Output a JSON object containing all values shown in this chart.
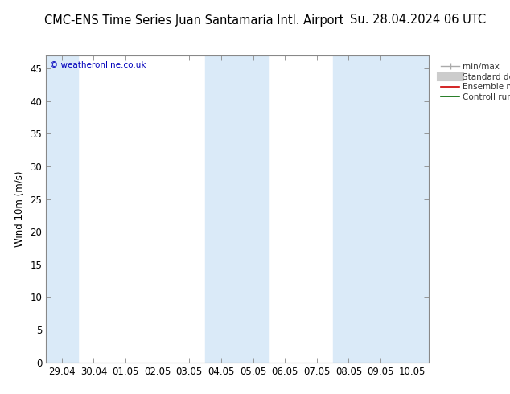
{
  "title_left": "CMC-ENS Time Series Juan Santamaría Intl. Airport",
  "title_right": "Su. 28.04.2024 06 UTC",
  "ylabel": "Wind 10m (m/s)",
  "watermark": "© weatheronline.co.uk",
  "ylim": [
    0,
    47
  ],
  "yticks": [
    0,
    5,
    10,
    15,
    20,
    25,
    30,
    35,
    40,
    45
  ],
  "xtick_labels": [
    "29.04",
    "30.04",
    "01.05",
    "02.05",
    "03.05",
    "04.05",
    "05.05",
    "06.05",
    "07.05",
    "08.05",
    "09.05",
    "10.05"
  ],
  "bg_color": "#ffffff",
  "plot_bg_color": "#ffffff",
  "band_color": "#daeaf8",
  "band_groups": [
    [
      0
    ],
    [
      5,
      6
    ],
    [
      9,
      10,
      11
    ]
  ],
  "title_fontsize": 10.5,
  "axis_fontsize": 8.5,
  "watermark_color": "#0000bb",
  "spine_color": "#888888"
}
